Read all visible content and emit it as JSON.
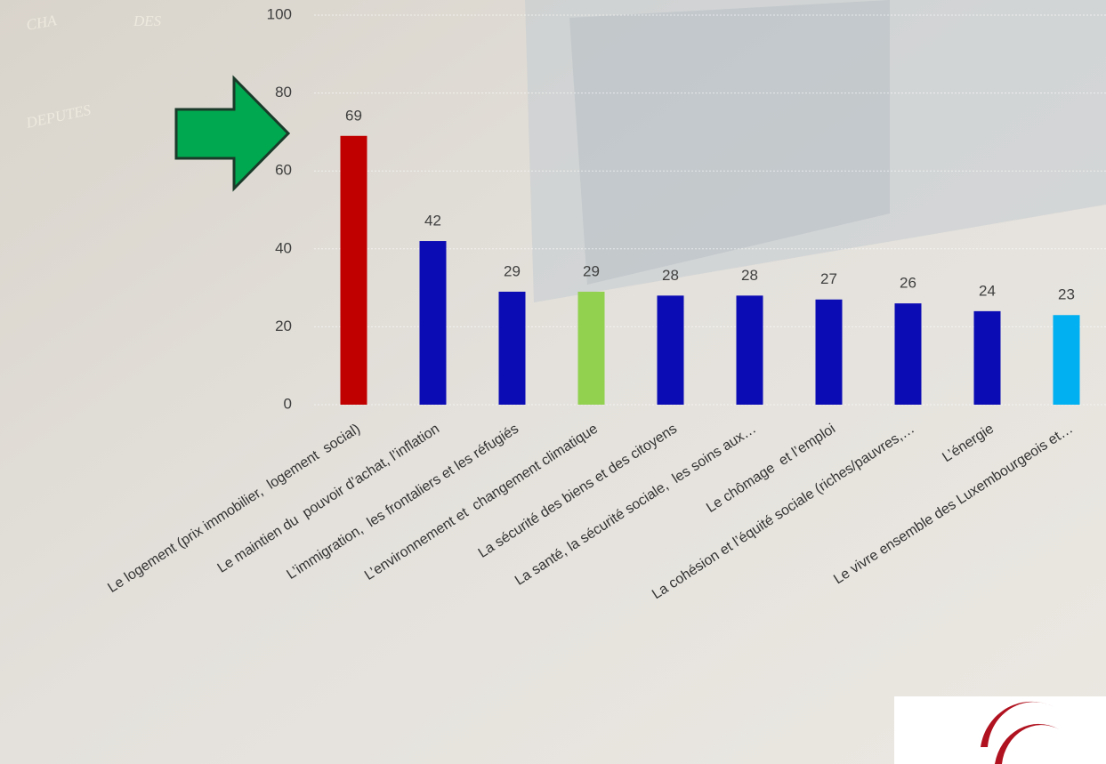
{
  "chart_data": {
    "type": "bar",
    "background_text": [
      "CHA",
      "DES",
      "DEPUTES"
    ],
    "categories": [
      "Le logement (prix immobilier,  logement  social)",
      "Le maintien du  pouvoir d’achat, l’inflation",
      "L’immigration,  les frontaliers et les réfugiés",
      "L’environnement et  changement climatique",
      "La sécurité des biens et des citoyens",
      "La santé, la sécurité sociale,  les soins aux…",
      "Le chômage  et l’emploi",
      "La cohésion et l’équité sociale (riches/pauvres,…",
      "L’énergie",
      "Le vivre ensemble des Luxembourgeois et…"
    ],
    "values": [
      69,
      42,
      29,
      29,
      28,
      28,
      27,
      26,
      24,
      23
    ],
    "colors": [
      "#c00000",
      "#0c0cb4",
      "#0c0cb4",
      "#92d050",
      "#0c0cb4",
      "#0c0cb4",
      "#0c0cb4",
      "#0c0cb4",
      "#0c0cb4",
      "#00b0f0"
    ],
    "ylim": [
      0,
      100
    ],
    "yticks": [
      0,
      20,
      40,
      60,
      80,
      100
    ],
    "grid": true
  }
}
